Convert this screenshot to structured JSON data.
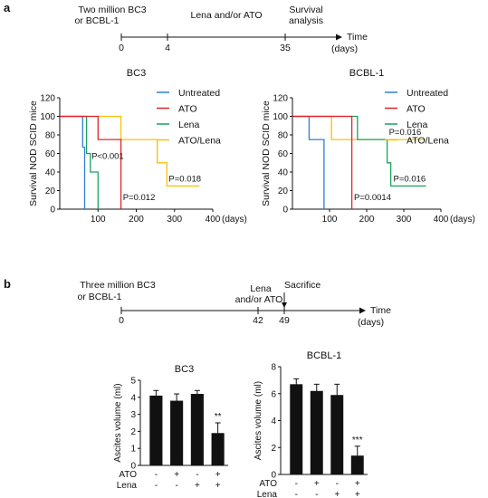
{
  "panels": {
    "a": "a",
    "b": "b"
  },
  "timeline_a": {
    "labels": [
      "Two million BC3",
      "or BCBL-1",
      "Lena and/or ATO",
      "Survival",
      "analysis"
    ],
    "ticks": [
      "0",
      "4",
      "35"
    ],
    "axis": [
      "Time",
      "(days)"
    ]
  },
  "timeline_b": {
    "labels": [
      "Three  million BC3",
      "or BCBL-1",
      "Lena",
      "and/or ATO",
      "Sacrifice"
    ],
    "ticks": [
      "0",
      "42",
      "49"
    ],
    "axis": [
      "Time",
      "(days)"
    ]
  },
  "colors": {
    "Untreated": "#2f7fd1",
    "ATO": "#e0242c",
    "Lena": "#17a35e",
    "ATO/Lena": "#f4c10f"
  },
  "chart_data": [
    {
      "type": "line",
      "step": true,
      "title": "BC3",
      "xlabel": "(days)",
      "ylabel": "Survival NOD SCID mice",
      "xlim": [
        0,
        400
      ],
      "ylim": [
        0,
        120
      ],
      "xticks": [
        100,
        200,
        300,
        400
      ],
      "yticks": [
        0,
        20,
        40,
        60,
        80,
        100,
        120
      ],
      "grid": false,
      "legend": "top-right",
      "series": [
        {
          "name": "Untreated",
          "x": [
            0,
            60,
            60,
            65,
            65
          ],
          "y": [
            100,
            100,
            66.7,
            66.7,
            0
          ]
        },
        {
          "name": "ATO",
          "x": [
            0,
            100,
            100,
            160,
            160
          ],
          "y": [
            100,
            100,
            75,
            75,
            0
          ]
        },
        {
          "name": "Lena",
          "x": [
            0,
            70,
            70,
            80,
            80,
            100,
            100
          ],
          "y": [
            100,
            100,
            60,
            60,
            40,
            40,
            0
          ]
        },
        {
          "name": "ATO/Lena",
          "x": [
            0,
            160,
            160,
            255,
            255,
            280,
            280,
            365
          ],
          "y": [
            100,
            100,
            75,
            75,
            50,
            50,
            25,
            25
          ]
        }
      ],
      "annotations": [
        {
          "text": "P<0.001",
          "series": "Lena",
          "x": 83,
          "y": 54
        },
        {
          "text": "P=0.012",
          "series": "ATO",
          "x": 165,
          "y": 10
        },
        {
          "text": "P=0.018",
          "series": "ATO/Lena",
          "x": 285,
          "y": 30
        }
      ]
    },
    {
      "type": "line",
      "step": true,
      "title": "BCBL-1",
      "xlabel": "(days)",
      "ylabel": "Survival NOD SCID mice",
      "xlim": [
        0,
        400
      ],
      "ylim": [
        0,
        120
      ],
      "xticks": [
        100,
        200,
        300,
        400
      ],
      "yticks": [
        0,
        20,
        40,
        60,
        80,
        100,
        120
      ],
      "grid": false,
      "legend": "top-right",
      "series": [
        {
          "name": "Untreated",
          "x": [
            0,
            45,
            45,
            85,
            85
          ],
          "y": [
            100,
            100,
            75,
            75,
            0
          ]
        },
        {
          "name": "ATO",
          "x": [
            0,
            160,
            160
          ],
          "y": [
            100,
            100,
            0
          ]
        },
        {
          "name": "Lena",
          "x": [
            0,
            175,
            175,
            255,
            255,
            265,
            265,
            360
          ],
          "y": [
            100,
            100,
            75,
            75,
            50,
            50,
            25,
            25
          ]
        },
        {
          "name": "ATO/Lena",
          "x": [
            0,
            105,
            105,
            360
          ],
          "y": [
            100,
            100,
            75,
            75
          ]
        }
      ],
      "annotations": [
        {
          "text": "P=0.016",
          "series": "ATO/Lena",
          "x": 260,
          "y": 80
        },
        {
          "text": "P=0.0014",
          "series": "ATO",
          "x": 166,
          "y": 10
        },
        {
          "text": "P=0.016",
          "series": "Lena",
          "x": 272,
          "y": 30
        }
      ]
    },
    {
      "type": "bar",
      "title": "BC3",
      "ylabel": "Ascites volume (ml)",
      "ylim": [
        0,
        5
      ],
      "yticks": [
        0,
        1,
        2,
        3,
        4,
        5
      ],
      "categories": [
        "-/-",
        "+/-",
        "-/+",
        "+/+"
      ],
      "rows": [
        {
          "label": "ATO",
          "values": [
            "-",
            "+",
            "-",
            "+"
          ]
        },
        {
          "label": "Lena",
          "values": [
            "-",
            "-",
            "+",
            "+"
          ]
        }
      ],
      "values": [
        4.1,
        3.8,
        4.2,
        1.9
      ],
      "errors": [
        0.3,
        0.4,
        0.2,
        0.6
      ],
      "significance": [
        "",
        "",
        "",
        "**"
      ]
    },
    {
      "type": "bar",
      "title": "BCBL-1",
      "ylabel": "Ascites volume (ml)",
      "ylim": [
        0,
        8
      ],
      "yticks": [
        0,
        2,
        4,
        6,
        8
      ],
      "categories": [
        "-/-",
        "+/-",
        "-/+",
        "+/+"
      ],
      "rows": [
        {
          "label": "ATO",
          "values": [
            "-",
            "+",
            "-",
            "+"
          ]
        },
        {
          "label": "Lena",
          "values": [
            "-",
            "-",
            "+",
            "+"
          ]
        }
      ],
      "values": [
        6.7,
        6.2,
        5.9,
        1.4
      ],
      "errors": [
        0.4,
        0.5,
        0.8,
        0.7
      ],
      "significance": [
        "",
        "",
        "",
        "***"
      ]
    }
  ]
}
